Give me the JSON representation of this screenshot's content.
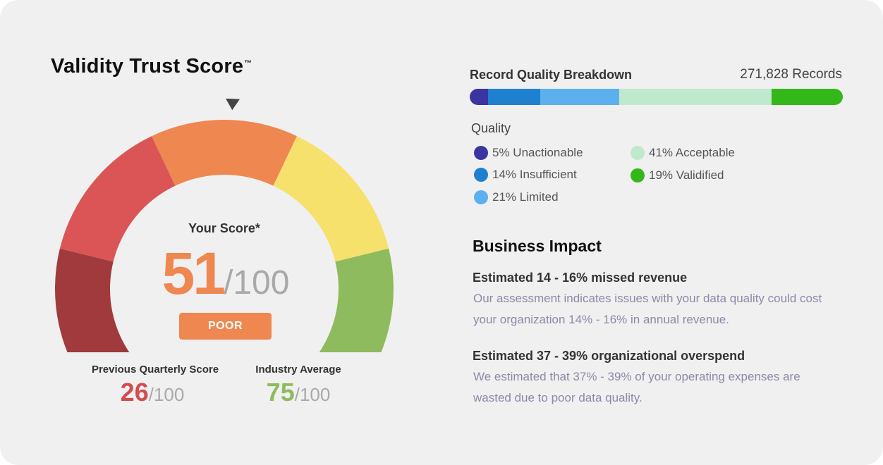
{
  "title": "Validity Trust Score",
  "title_mark": "™",
  "gauge": {
    "segments": [
      {
        "name": "dark-red",
        "color": "#a03a3c"
      },
      {
        "name": "red",
        "color": "#db5556"
      },
      {
        "name": "orange",
        "color": "#ee8750"
      },
      {
        "name": "yellow",
        "color": "#f5e16c"
      },
      {
        "name": "green",
        "color": "#8fbb5f"
      }
    ],
    "pointer_value": 51
  },
  "score": {
    "label": "Your Score*",
    "value": "51",
    "out_of": "/100",
    "rating": "POOR",
    "color": "#ee8750"
  },
  "previous": {
    "label": "Previous Quarterly Score",
    "value": "26",
    "out_of": "/100",
    "color": "#d24d4f"
  },
  "industry": {
    "label": "Industry Average",
    "value": "75",
    "out_of": "/100",
    "color": "#8fbb5f"
  },
  "record_quality": {
    "title": "Record Quality Breakdown",
    "records": "271,828 Records",
    "quality_label": "Quality",
    "segments": [
      {
        "label": "5% Unactionable",
        "percent": 5,
        "color": "#3a35a0"
      },
      {
        "label": "14% Insufficient",
        "percent": 14,
        "color": "#1f80cf"
      },
      {
        "label": "21% Limited",
        "percent": 21,
        "color": "#5cb0ee"
      },
      {
        "label": "41% Acceptable",
        "percent": 41,
        "color": "#bfe9cc"
      },
      {
        "label": "19% Validified",
        "percent": 19,
        "color": "#34b719"
      }
    ]
  },
  "business_impact": {
    "title": "Business Impact",
    "items": [
      {
        "heading": "Estimated 14 - 16% missed revenue",
        "body": "Our assessment indicates issues with your data quality could cost your organization 14% - 16% in annual revenue."
      },
      {
        "heading": "Estimated 37 - 39% organizational overspend",
        "body": "We estimated that 37% - 39% of your operating expenses are wasted due to poor data quality."
      }
    ]
  }
}
